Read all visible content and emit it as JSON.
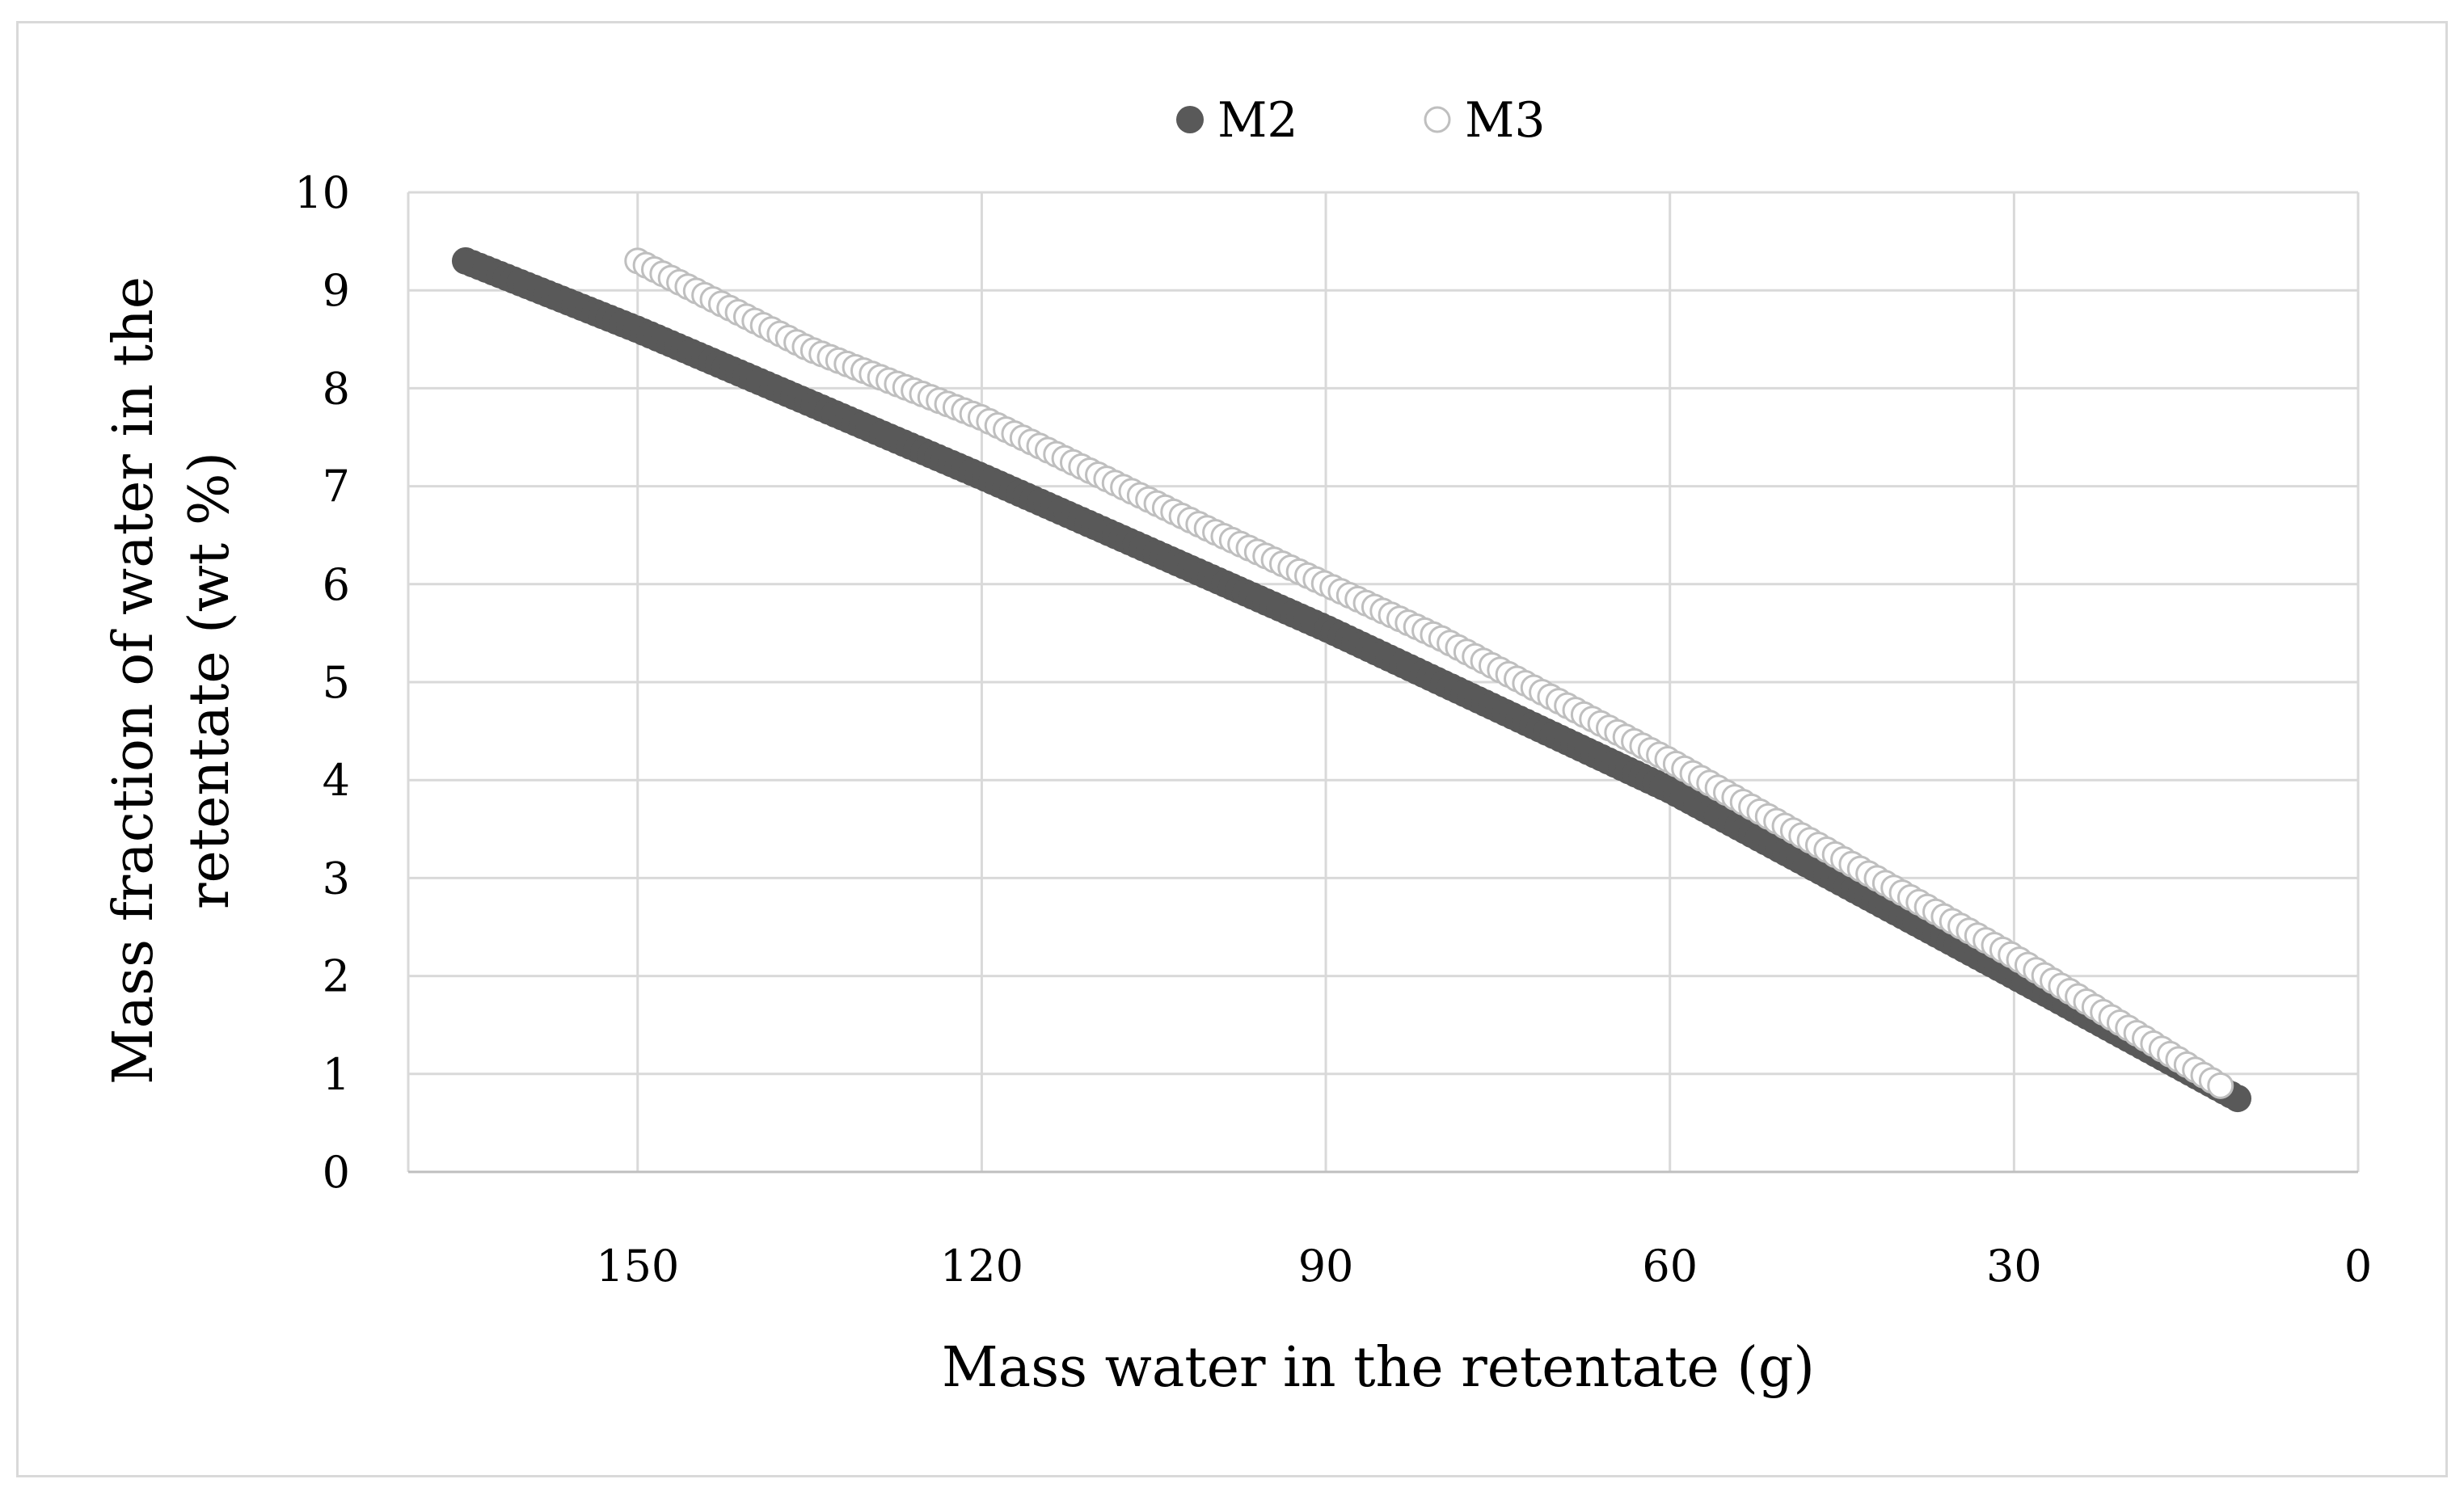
{
  "chart_data": {
    "type": "scatter",
    "title": "",
    "xlabel": "Mass water in the retentate (g)",
    "ylabel_lines": [
      "Mass fraction of water in the",
      "retentate  (wt %)"
    ],
    "x_reversed": true,
    "xlim": [
      0,
      170
    ],
    "ylim": [
      0,
      10
    ],
    "xticks": [
      "150",
      "120",
      "90",
      "60",
      "30",
      "0"
    ],
    "yticks": [
      "0",
      "1",
      "2",
      "3",
      "4",
      "5",
      "6",
      "7",
      "8",
      "9",
      "10"
    ],
    "grid": true,
    "legend_position": "top-center",
    "series": [
      {
        "name": "M2",
        "marker": "filled-circle",
        "color": "#595959",
        "x_start": 165,
        "x_end": 10.5,
        "points": 260,
        "anchors": [
          [
            165,
            9.3
          ],
          [
            150,
            8.6
          ],
          [
            120,
            7.1
          ],
          [
            90,
            5.55
          ],
          [
            60,
            3.9
          ],
          [
            30,
            2.0
          ],
          [
            10.5,
            0.75
          ]
        ]
      },
      {
        "name": "M3",
        "marker": "open-circle",
        "color": "#bfbfbf",
        "x_start": 150,
        "x_end": 12,
        "points": 190,
        "anchors": [
          [
            150,
            9.3
          ],
          [
            135,
            8.4
          ],
          [
            120,
            7.7
          ],
          [
            100,
            6.55
          ],
          [
            90,
            6.0
          ],
          [
            80,
            5.45
          ],
          [
            60,
            4.2
          ],
          [
            30,
            2.2
          ],
          [
            12,
            0.88
          ]
        ]
      }
    ]
  }
}
